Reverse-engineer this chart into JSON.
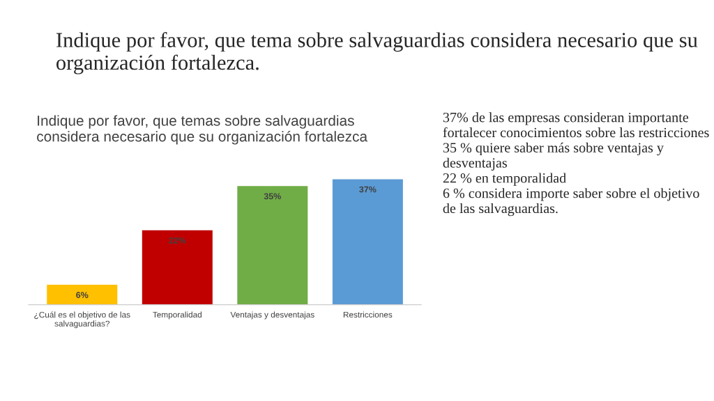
{
  "chart_data": {
    "type": "bar",
    "title": "Indique por favor, que tema sobre salvaguardias considera necesario que su organización fortalezca.",
    "subtitle": "Indique por favor, que temas sobre salvaguardias\nconsidera necesario que su organización fortalezca",
    "categories": [
      "¿Cuál es el objetivo de las\nsalvaguardias?",
      "Temporalidad",
      "Ventajas y desventajas",
      "Restricciones"
    ],
    "values": [
      6,
      22,
      35,
      37
    ],
    "value_labels": [
      "6%",
      "22%",
      "35%",
      "37%"
    ],
    "colors": [
      "#ffc000",
      "#c00000",
      "#70ad47",
      "#5b9bd5"
    ],
    "grid": false,
    "legend": false,
    "tick_labels": "x",
    "annotations": [
      "37% de las empresas consideran importante fortalecer conocimientos sobre las restricciones",
      "35 % quiere saber más sobre ventajas y desventajas",
      "22 % en temporalidad",
      "6 % considera importe saber sobre el objetivo de las salvaguardias."
    ]
  }
}
